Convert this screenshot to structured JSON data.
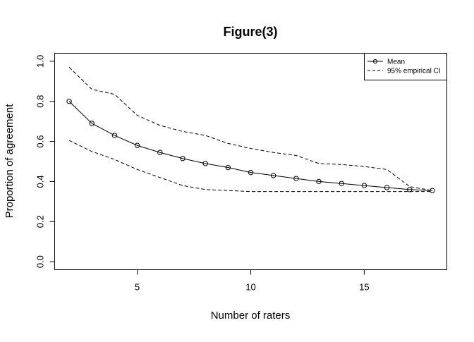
{
  "page": {
    "background": "#ffffff",
    "foreground": "#000000"
  },
  "chart": {
    "title": "Figure(3)",
    "xlabel": "Number of raters",
    "ylabel": "Proportion of agreement"
  },
  "legend": {
    "position": "topright",
    "items": [
      {
        "label": "Mean",
        "style": "solid-line-circle"
      },
      {
        "label": "95% empirical CI",
        "style": "dashed-line"
      }
    ]
  },
  "chart_data": {
    "type": "line",
    "title": "Figure(3)",
    "xlabel": "Number of raters",
    "ylabel": "Proportion of agreement",
    "xlim": [
      2,
      18
    ],
    "ylim": [
      0,
      1
    ],
    "grid": false,
    "legend_position": "topright",
    "line_color": "#000000",
    "xticks": [
      {
        "v": 5,
        "label": "5"
      },
      {
        "v": 10,
        "label": "10"
      },
      {
        "v": 15,
        "label": "15"
      }
    ],
    "yticks": [
      {
        "v": 0.0,
        "label": "0.0"
      },
      {
        "v": 0.2,
        "label": "0.2"
      },
      {
        "v": 0.4,
        "label": "0.4"
      },
      {
        "v": 0.6,
        "label": "0.6"
      },
      {
        "v": 0.8,
        "label": "0.8"
      },
      {
        "v": 1.0,
        "label": "1.0"
      }
    ],
    "x": [
      2,
      3,
      4,
      5,
      6,
      7,
      8,
      9,
      10,
      11,
      12,
      13,
      14,
      15,
      16,
      17,
      18
    ],
    "series": [
      {
        "name": "Mean",
        "style": "solid",
        "marker": "circle",
        "values": [
          0.8,
          0.69,
          0.63,
          0.58,
          0.545,
          0.515,
          0.49,
          0.47,
          0.445,
          0.43,
          0.415,
          0.4,
          0.39,
          0.38,
          0.37,
          0.36,
          0.355
        ]
      },
      {
        "name": "95% empirical CI upper",
        "style": "dashed",
        "marker": "none",
        "values": [
          0.97,
          0.86,
          0.835,
          0.73,
          0.68,
          0.65,
          0.63,
          0.59,
          0.565,
          0.545,
          0.53,
          0.49,
          0.485,
          0.475,
          0.46,
          0.375,
          0.355
        ]
      },
      {
        "name": "95% empirical CI lower",
        "style": "dashed",
        "marker": "none",
        "values": [
          0.605,
          0.55,
          0.51,
          0.46,
          0.42,
          0.38,
          0.36,
          0.355,
          0.35,
          0.35,
          0.35,
          0.35,
          0.35,
          0.35,
          0.35,
          0.35,
          0.35
        ]
      }
    ]
  }
}
